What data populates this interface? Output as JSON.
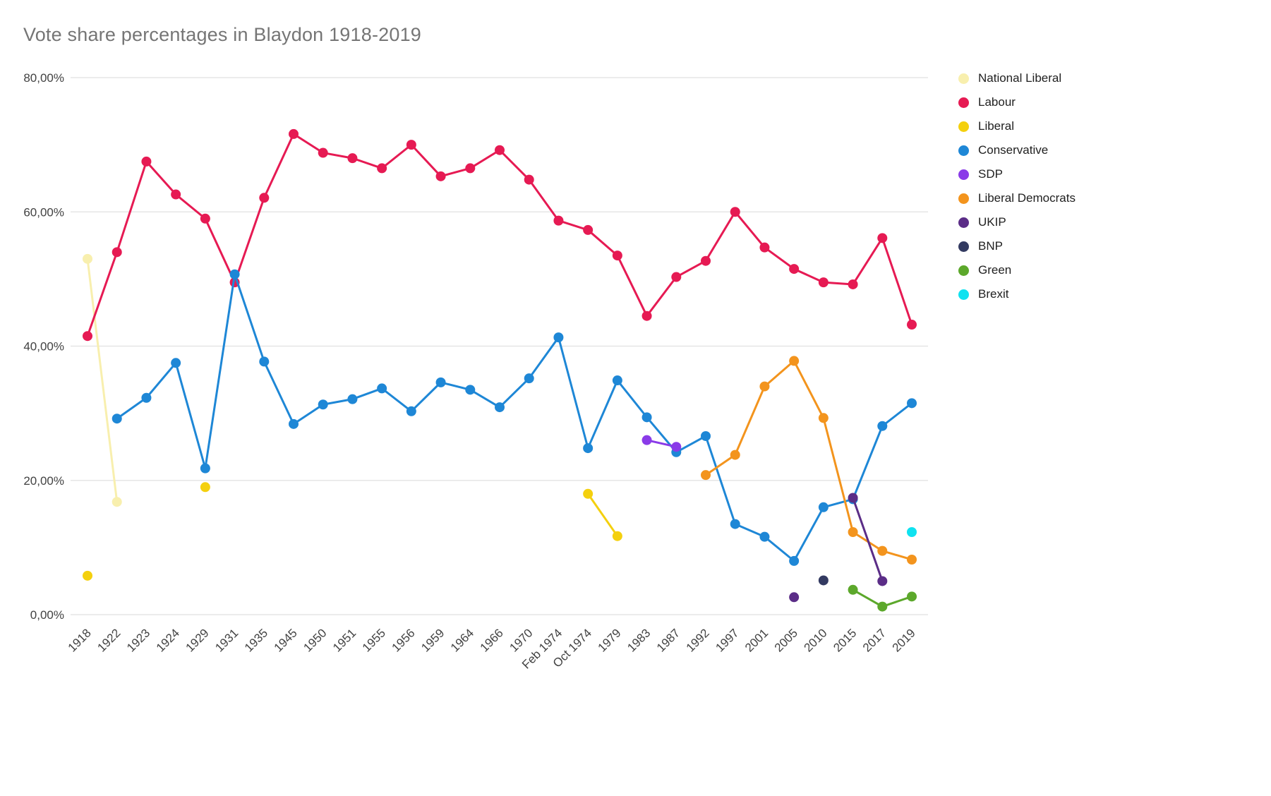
{
  "title": "Vote share percentages in Blaydon 1918-2019",
  "chart_data": {
    "type": "line",
    "title": "Vote share percentages in Blaydon 1918-2019",
    "xlabel": "",
    "ylabel": "",
    "ylim": [
      0,
      80
    ],
    "grid": true,
    "legend_position": "right",
    "colors": {
      "grid": "#e6e6e6",
      "axis_text": "#424242",
      "title_text": "#757575"
    },
    "y_ticks": [
      {
        "value": 0,
        "label": "0,00%"
      },
      {
        "value": 20,
        "label": "20,00%"
      },
      {
        "value": 40,
        "label": "40,00%"
      },
      {
        "value": 60,
        "label": "60,00%"
      },
      {
        "value": 80,
        "label": "80,00%"
      }
    ],
    "categories": [
      "1918",
      "1922",
      "1923",
      "1924",
      "1929",
      "1931",
      "1935",
      "1945",
      "1950",
      "1951",
      "1955",
      "1956",
      "1959",
      "1964",
      "1966",
      "1970",
      "Feb 1974",
      "Oct 1974",
      "1979",
      "1983",
      "1987",
      "1992",
      "1997",
      "2001",
      "2005",
      "2010",
      "2015",
      "2017",
      "2019"
    ],
    "series": [
      {
        "name": "National Liberal",
        "color": "#f8efae",
        "points": [
          [
            "1918",
            53.0
          ],
          [
            "1922",
            16.8
          ]
        ]
      },
      {
        "name": "Labour",
        "color": "#e61a53",
        "points": [
          [
            "1918",
            41.5
          ],
          [
            "1922",
            54.0
          ],
          [
            "1923",
            67.5
          ],
          [
            "1924",
            62.6
          ],
          [
            "1929",
            59.0
          ],
          [
            "1931",
            49.5
          ],
          [
            "1935",
            62.1
          ],
          [
            "1945",
            71.6
          ],
          [
            "1950",
            68.8
          ],
          [
            "1951",
            68.0
          ],
          [
            "1955",
            66.5
          ],
          [
            "1956",
            70.0
          ],
          [
            "1959",
            65.3
          ],
          [
            "1964",
            66.5
          ],
          [
            "1966",
            69.2
          ],
          [
            "1970",
            64.8
          ],
          [
            "Feb 1974",
            58.7
          ],
          [
            "Oct 1974",
            57.3
          ],
          [
            "1979",
            53.5
          ],
          [
            "1983",
            44.5
          ],
          [
            "1987",
            50.3
          ],
          [
            "1992",
            52.7
          ],
          [
            "1997",
            60.0
          ],
          [
            "2001",
            54.7
          ],
          [
            "2005",
            51.5
          ],
          [
            "2010",
            49.5
          ],
          [
            "2015",
            49.2
          ],
          [
            "2017",
            56.1
          ],
          [
            "2019",
            43.2
          ]
        ]
      },
      {
        "name": "Liberal",
        "color": "#f4d00e",
        "points": [
          [
            "1918",
            5.8
          ],
          [
            "1929",
            19.0
          ],
          [
            "Oct 1974",
            18.0
          ],
          [
            "1979",
            11.7
          ]
        ]
      },
      {
        "name": "Conservative",
        "color": "#1e87d6",
        "points": [
          [
            "1922",
            29.2
          ],
          [
            "1923",
            32.3
          ],
          [
            "1924",
            37.5
          ],
          [
            "1929",
            21.8
          ],
          [
            "1931",
            50.7
          ],
          [
            "1935",
            37.7
          ],
          [
            "1945",
            28.4
          ],
          [
            "1950",
            31.3
          ],
          [
            "1951",
            32.1
          ],
          [
            "1955",
            33.7
          ],
          [
            "1956",
            30.3
          ],
          [
            "1959",
            34.6
          ],
          [
            "1964",
            33.5
          ],
          [
            "1966",
            30.9
          ],
          [
            "1970",
            35.2
          ],
          [
            "Feb 1974",
            41.3
          ],
          [
            "Oct 1974",
            24.8
          ],
          [
            "1979",
            34.9
          ],
          [
            "1983",
            29.4
          ],
          [
            "1987",
            24.2
          ],
          [
            "1992",
            26.6
          ],
          [
            "1997",
            13.5
          ],
          [
            "2001",
            11.6
          ],
          [
            "2005",
            8.0
          ],
          [
            "2010",
            16.0
          ],
          [
            "2015",
            17.2
          ],
          [
            "2017",
            28.1
          ],
          [
            "2019",
            31.5
          ]
        ]
      },
      {
        "name": "SDP",
        "color": "#8a3be8",
        "points": [
          [
            "1983",
            26.0
          ],
          [
            "1987",
            25.0
          ]
        ]
      },
      {
        "name": "Liberal Democrats",
        "color": "#f3941d",
        "points": [
          [
            "1992",
            20.8
          ],
          [
            "1997",
            23.8
          ],
          [
            "2001",
            34.0
          ],
          [
            "2005",
            37.8
          ],
          [
            "2010",
            29.3
          ],
          [
            "2015",
            12.3
          ],
          [
            "2017",
            9.5
          ],
          [
            "2019",
            8.2
          ]
        ]
      },
      {
        "name": "UKIP",
        "color": "#5b2d87",
        "points": [
          [
            "2005",
            2.6
          ],
          [
            "2015",
            17.4
          ],
          [
            "2017",
            5.0
          ]
        ]
      },
      {
        "name": "BNP",
        "color": "#333a61",
        "points": [
          [
            "2010",
            5.1
          ]
        ]
      },
      {
        "name": "Green",
        "color": "#5ca82b",
        "points": [
          [
            "2015",
            3.7
          ],
          [
            "2017",
            1.2
          ],
          [
            "2019",
            2.7
          ]
        ]
      },
      {
        "name": "Brexit",
        "color": "#0fe2f0",
        "points": [
          [
            "2019",
            12.3
          ]
        ]
      }
    ]
  }
}
